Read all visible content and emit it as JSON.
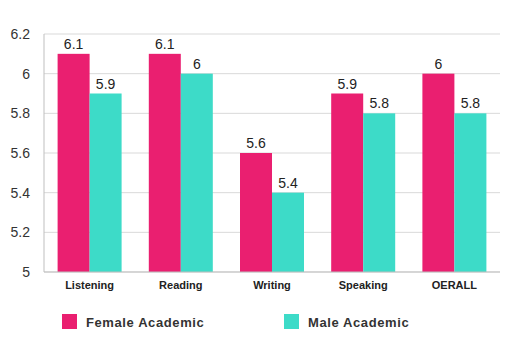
{
  "chart_data": {
    "type": "bar",
    "categories": [
      "Listening",
      "Reading",
      "Writing",
      "Speaking",
      "OERALL"
    ],
    "series": [
      {
        "name": "Female Academic",
        "color": "#ea1f70",
        "values": [
          6.1,
          6.1,
          5.6,
          5.9,
          6
        ]
      },
      {
        "name": "Male Academic",
        "color": "#3ddbc8",
        "values": [
          5.9,
          6,
          5.4,
          5.8,
          5.8
        ]
      }
    ],
    "ylim": [
      5,
      6.2
    ],
    "yticks": [
      5,
      5.2,
      5.4,
      5.6,
      5.8,
      6,
      6.2
    ],
    "grid": true,
    "data_labels": true,
    "legend": "bottom"
  }
}
